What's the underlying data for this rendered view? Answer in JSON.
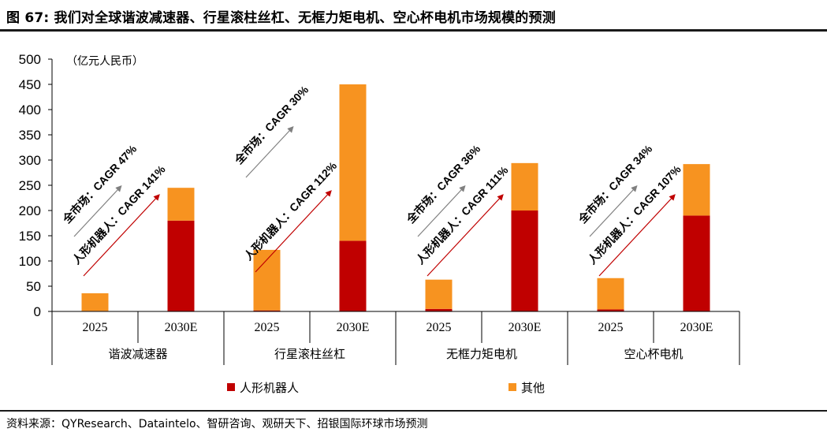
{
  "header": {
    "title": "图 67: 我们对全球谐波减速器、行星滚柱丝杠、无框力矩电机、空心杯电机市场规模的预测"
  },
  "footer": {
    "source": "资料来源：QYResearch、Dataintelo、智研咨询、观研天下、招银国际环球市场预测"
  },
  "chart_data": {
    "type": "bar",
    "stacked": true,
    "unit_label": "（亿元人民币）",
    "ylim": [
      0,
      500
    ],
    "yticks": [
      0,
      50,
      100,
      150,
      200,
      250,
      300,
      350,
      400,
      450,
      500
    ],
    "groups": [
      "谐波减速器",
      "行星滚柱丝杠",
      "无框力矩电机",
      "空心杯电机"
    ],
    "categories": [
      "2025",
      "2030E",
      "2025",
      "2030E",
      "2025",
      "2030E",
      "2025",
      "2030E"
    ],
    "series": [
      {
        "name": "人形机器人",
        "color": "#C00000",
        "values": [
          1,
          180,
          2,
          140,
          5,
          200,
          4,
          190
        ]
      },
      {
        "name": "其他",
        "color": "#F79320",
        "values": [
          35,
          65,
          120,
          310,
          58,
          94,
          62,
          102
        ]
      }
    ],
    "annotations": [
      {
        "group": 0,
        "market": "全市场：CAGR 47%",
        "robot": "人形机器人：CAGR 141%"
      },
      {
        "group": 1,
        "market": "全市场：CAGR 30%",
        "robot": "人形机器人：CAGR 112%"
      },
      {
        "group": 2,
        "market": "全市场：CAGR 36%",
        "robot": "人形机器人：CAGR 111%"
      },
      {
        "group": 3,
        "market": "全市场：CAGR 34%",
        "robot": "人形机器人：CAGR 107%"
      }
    ],
    "colors": {
      "market_arrow": "#808080",
      "robot_arrow": "#C00000"
    },
    "legend_position": "bottom"
  }
}
